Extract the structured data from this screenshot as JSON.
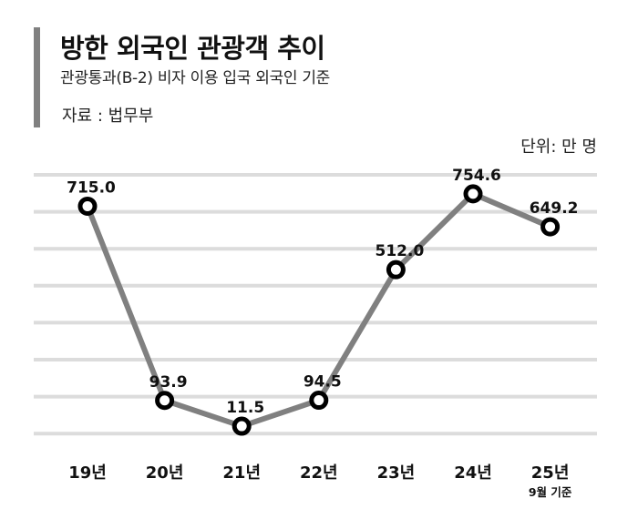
{
  "header": {
    "title": "방한 외국인 관광객 추이",
    "subtitle": "관광통과(B-2) 비자 이용 입국 외국인 기준",
    "source": "자료 : 법무부",
    "unit": "단위: 만 명"
  },
  "colors": {
    "accent_bar": "#808080",
    "line": "#808080",
    "grid": "#dcdcdc",
    "marker_stroke": "#000000",
    "marker_fill": "#ffffff",
    "text": "#111111"
  },
  "chart_data": {
    "type": "line",
    "title": "방한 외국인 관광객 추이",
    "subtitle": "관광통과(B-2) 비자 이용 입국 외국인 기준",
    "source": "자료 : 법무부",
    "unit": "단위: 만 명",
    "xlabel": "",
    "ylabel": "",
    "categories": [
      "19년",
      "20년",
      "21년",
      "22년",
      "23년",
      "24년",
      "25년"
    ],
    "category_notes": [
      "",
      "",
      "",
      "",
      "",
      "",
      "9월 기준"
    ],
    "series": [
      {
        "name": "방한 외국인 관광객",
        "values": [
          715.0,
          93.9,
          11.5,
          94.5,
          512.0,
          754.6,
          649.2
        ]
      }
    ],
    "value_labels": [
      "715.0",
      "93.9",
      "11.5",
      "94.5",
      "512.0",
      "754.6",
      "649.2"
    ],
    "grid": true,
    "gridline_count": 8,
    "legend": "none",
    "y_axis_visible": false
  }
}
